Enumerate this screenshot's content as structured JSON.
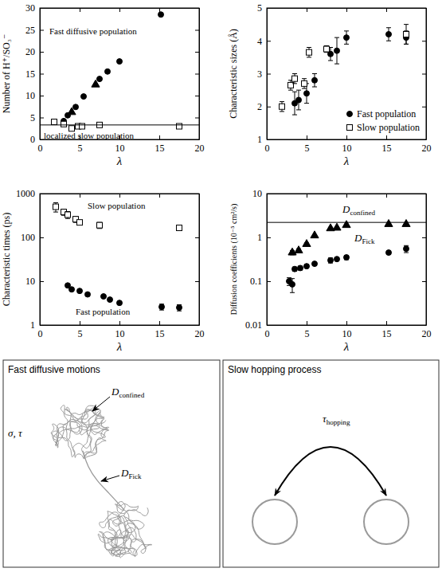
{
  "chart_data": [
    {
      "type": "scatter",
      "xlabel": "λ",
      "ylabel": "Number of H⁺/SO₃⁻",
      "xlim": [
        0,
        20
      ],
      "ylim": [
        0,
        30
      ],
      "xticks": [
        0,
        5,
        10,
        15,
        20
      ],
      "yticks": [
        0,
        5,
        10,
        15,
        20,
        25,
        30
      ],
      "series": [
        {
          "type": "scatter",
          "marker": "circle",
          "color": "#000000",
          "x": [
            3.0,
            3.5,
            4.5,
            5.5,
            7.5,
            8.5,
            10.0,
            15.2
          ],
          "values": [
            4.2,
            5.5,
            7.4,
            9.8,
            13.8,
            15.5,
            17.8,
            28.5
          ]
        },
        {
          "type": "scatter",
          "marker": "triangle",
          "color": "#000000",
          "x": [
            4.0,
            7.0
          ],
          "values": [
            6.2,
            12.5
          ]
        },
        {
          "type": "scatter",
          "marker": "square-open",
          "color": "#000000",
          "x": [
            1.8,
            3.0,
            4.0,
            4.8,
            5.3,
            7.5,
            17.5
          ],
          "values": [
            4.0,
            3.5,
            2.5,
            3.0,
            3.0,
            3.3,
            3.0
          ]
        },
        {
          "type": "line",
          "line_style": "solid",
          "color": "#000000",
          "x": [
            0,
            20
          ],
          "values": [
            3.3,
            3.3
          ]
        }
      ],
      "annotations": [
        {
          "text": "Fast diffusive population",
          "x": 1.2,
          "y": 24
        },
        {
          "text": "localized slow population",
          "x": 0.5,
          "y": 0.2
        }
      ]
    },
    {
      "type": "scatter",
      "xlabel": "λ",
      "ylabel": "Characteristic sizes (Å)",
      "xlim": [
        0,
        20
      ],
      "ylim": [
        1,
        5
      ],
      "xticks": [
        0,
        5,
        10,
        15,
        20
      ],
      "yticks": [
        1,
        2,
        3,
        4,
        5
      ],
      "legend": "lower right",
      "series": [
        {
          "name": "Fast population",
          "type": "scatter",
          "marker": "circle",
          "color": "#000000",
          "x": [
            3.5,
            4.0,
            5.0,
            6.0,
            8.0,
            8.8,
            10.0,
            15.3,
            17.5
          ],
          "values": [
            2.1,
            2.2,
            2.4,
            2.8,
            3.6,
            3.7,
            4.1,
            4.2,
            4.1
          ],
          "errors": [
            0.35,
            0.3,
            0.3,
            0.2,
            0.2,
            0.4,
            0.2,
            0.2,
            0.2
          ]
        },
        {
          "name": "Slow population",
          "type": "scatter",
          "marker": "square-open",
          "color": "#000000",
          "x": [
            1.9,
            3.0,
            3.5,
            4.7,
            5.3,
            7.5,
            17.5
          ],
          "values": [
            2.0,
            2.65,
            2.85,
            2.7,
            3.65,
            3.75,
            4.2
          ],
          "errors": [
            0.15,
            0.15,
            0.15,
            0.15,
            0.15,
            0.1,
            0.3
          ]
        }
      ]
    },
    {
      "type": "scatter",
      "xlabel": "λ",
      "ylabel": "Characteristic times (ps)",
      "log": "y",
      "xlim": [
        0,
        20
      ],
      "ylim": [
        1,
        1000
      ],
      "xticks": [
        0,
        5,
        10,
        15,
        20
      ],
      "yticks": [
        1,
        10,
        100,
        1000
      ],
      "series": [
        {
          "type": "scatter",
          "marker": "square-open",
          "color": "#000000",
          "x": [
            2.0,
            3.0,
            3.5,
            4.5,
            5.0,
            7.5,
            17.5
          ],
          "values": [
            500,
            380,
            330,
            260,
            220,
            190,
            165
          ],
          "errors": [
            120,
            60,
            60,
            40,
            20,
            30,
            15
          ]
        },
        {
          "type": "scatter",
          "marker": "circle",
          "color": "#000000",
          "x": [
            3.5,
            4.0,
            5.0,
            6.0,
            8.0,
            8.8,
            10.0,
            15.3,
            17.5
          ],
          "values": [
            8,
            6.5,
            6,
            5,
            4.5,
            3.8,
            3.2,
            2.6,
            2.5
          ],
          "errors": [
            0.3,
            0.3,
            0.3,
            0.2,
            0.3,
            0.2,
            0.2,
            0.4,
            0.4
          ]
        }
      ],
      "annotations": [
        {
          "text": "Slow population",
          "x": 6,
          "y": 450
        },
        {
          "text": "Fast population",
          "x": 4.5,
          "y": 1.7
        }
      ]
    },
    {
      "type": "scatter",
      "xlabel": "λ",
      "ylabel": "Diffusion coefficients (10⁻⁵ cm²/s)",
      "log": "y",
      "xlim": [
        0,
        20
      ],
      "ylim": [
        0.01,
        10
      ],
      "xticks": [
        0,
        5,
        10,
        15,
        20
      ],
      "yticks": [
        0.01,
        0.1,
        1,
        10
      ],
      "series": [
        {
          "type": "scatter",
          "marker": "triangle",
          "color": "#000000",
          "x": [
            3.2,
            4.0,
            5.0,
            6.0,
            8.0,
            8.8,
            10.0,
            15.3,
            17.5
          ],
          "values": [
            0.45,
            0.5,
            0.7,
            1.1,
            1.6,
            1.65,
            1.9,
            2.0,
            2.0
          ],
          "errors": [
            0.05,
            0.05,
            0.05,
            0.05,
            0.1,
            0.1,
            0.1,
            0.1,
            0.1
          ]
        },
        {
          "type": "scatter",
          "marker": "circle",
          "color": "#000000",
          "x": [
            2.8,
            3.2,
            3.5,
            4.2,
            5.0,
            6.0,
            8.0,
            8.8,
            10.0,
            15.3,
            17.5
          ],
          "values": [
            0.1,
            0.085,
            0.19,
            0.2,
            0.22,
            0.25,
            0.3,
            0.32,
            0.35,
            0.45,
            0.55
          ],
          "errors": [
            0.02,
            0.03,
            0.02,
            0.02,
            0.02,
            0.02,
            0.04,
            0.02,
            0.04,
            0.04,
            0.1
          ]
        },
        {
          "type": "line",
          "line_style": "solid",
          "color": "#000000",
          "x": [
            0,
            20
          ],
          "values": [
            2.2,
            2.2
          ]
        }
      ],
      "annotations": [
        {
          "text": "D",
          "subscript": "confined",
          "x": 9.5,
          "y": 3.6
        },
        {
          "text": "D",
          "subscript": "Fick",
          "x": 11,
          "y": 0.8
        }
      ]
    }
  ],
  "diagrams": [
    {
      "title": "Fast diffusive motions",
      "labels": [
        {
          "text": "D",
          "subscript": "confined"
        },
        {
          "text": "D",
          "subscript": "Fick"
        },
        {
          "text": "σ, τ"
        }
      ]
    },
    {
      "title": "Slow hopping process",
      "labels": [
        {
          "text": "τ",
          "subscript": "hopping"
        }
      ]
    }
  ]
}
